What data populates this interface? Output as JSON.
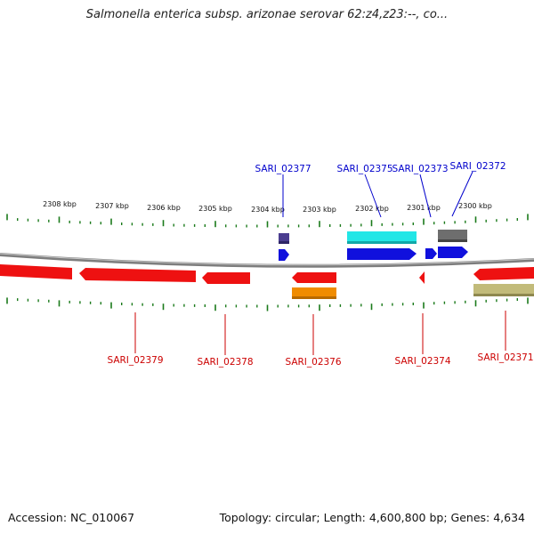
{
  "title": "Salmonella enterica subsp. arizonae serovar 62:z4,z23:--, co...",
  "footer": {
    "accession": "Accession: NC_010067",
    "summary": "Topology: circular; Length: 4,600,800 bp; Genes: 4,634"
  },
  "colors": {
    "axis_ticks": "#1a7a1a",
    "backbone": "#8c8c8c",
    "forward_label": "#0000cc",
    "reverse_label": "#cc0000"
  },
  "scale_labels": [
    "2308 kbp",
    "2307 kbp",
    "2306 kbp",
    "2305 kbp",
    "2304 kbp",
    "2303 kbp",
    "2302 kbp",
    "2301 kbp",
    "2300 kbp"
  ],
  "gene_labels": {
    "top": [
      "SARI_02377",
      "SARI_02375",
      "SARI_02373",
      "SARI_02372"
    ],
    "bottom": [
      "SARI_02379",
      "SARI_02378",
      "SARI_02376",
      "SARI_02374",
      "SARI_02371"
    ]
  }
}
